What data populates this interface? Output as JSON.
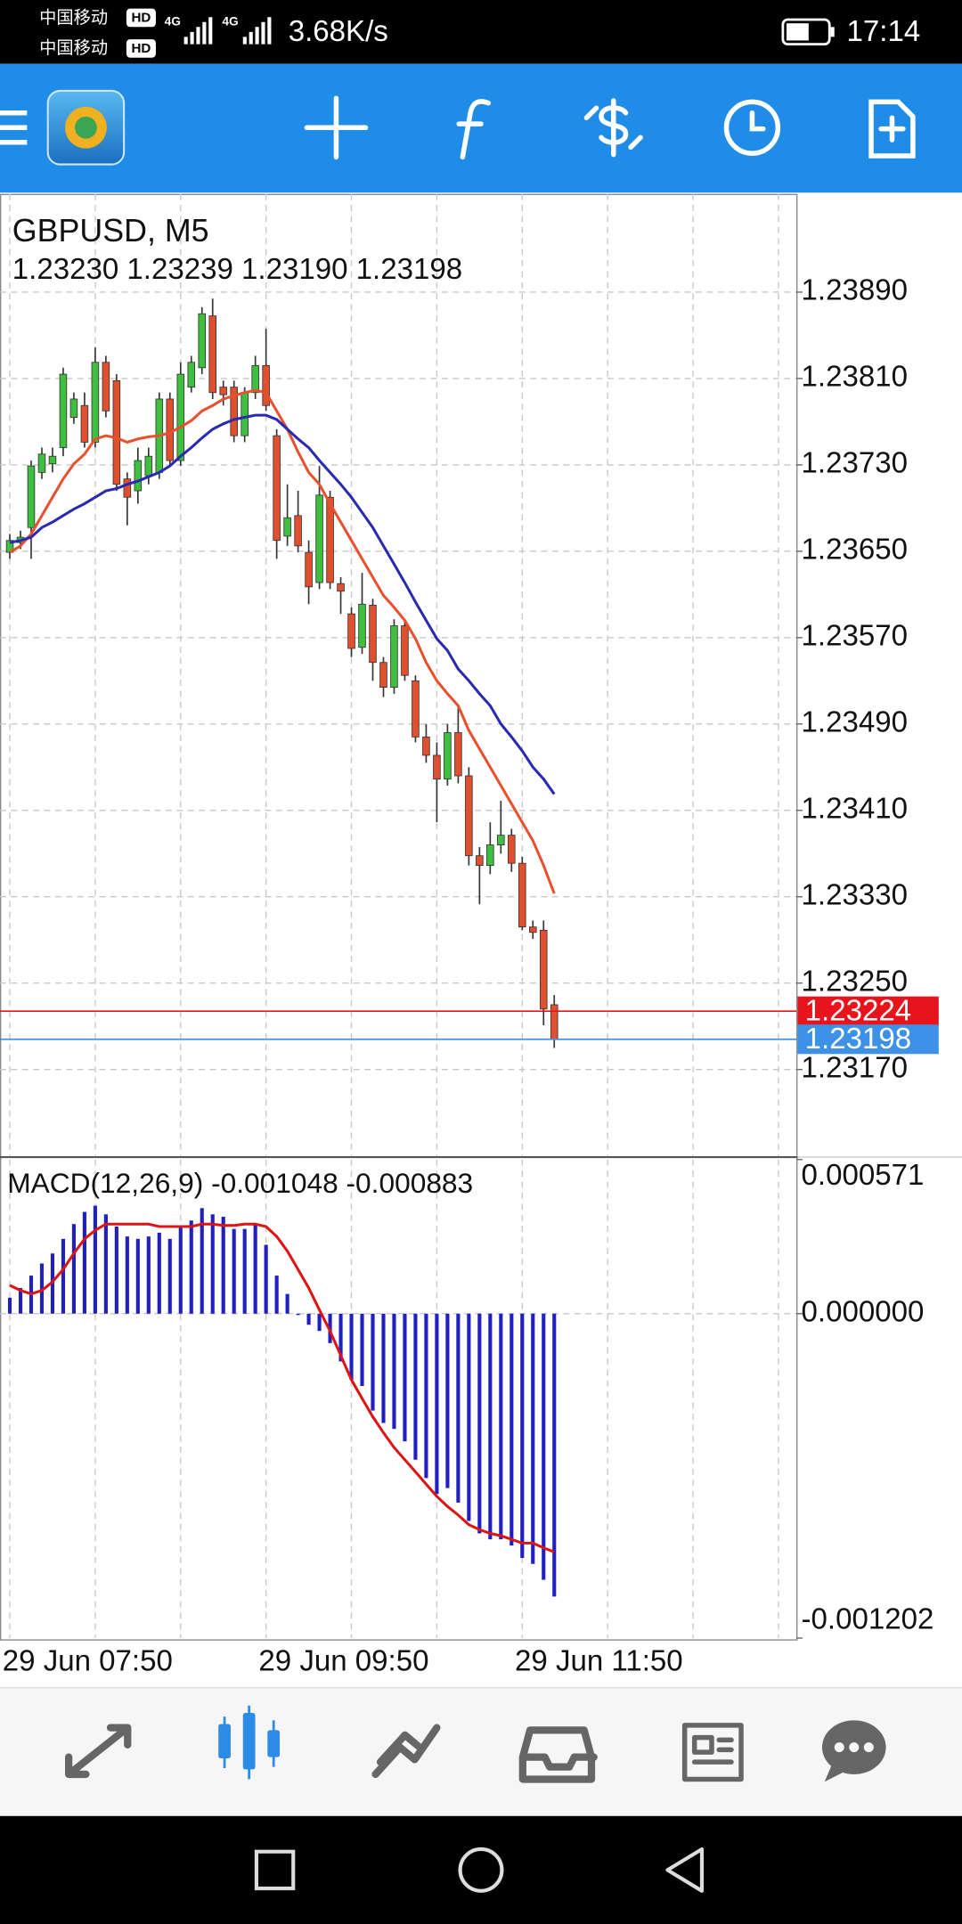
{
  "status_bar": {
    "carrier1": "中国移动",
    "carrier2": "中国移动",
    "hd": "HD",
    "network": "4G",
    "speed": "3.68K/s",
    "time": "17:14"
  },
  "chart_data": [
    {
      "type": "candlestick",
      "title": "GBPUSD, M5",
      "subtitle": "1.23230 1.23239 1.23190 1.23198",
      "up_color": "#3fbf3f",
      "down_color": "#e0502e",
      "grid": true,
      "open": [
        1.23649,
        1.23658,
        1.23672,
        1.23723,
        1.23731,
        1.23746,
        1.23774,
        1.23785,
        1.23751,
        1.23825,
        1.23808,
        1.23717,
        1.23706,
        1.2372,
        1.23723,
        1.23791,
        1.23734,
        1.23802,
        1.2382,
        1.23868,
        1.23802,
        1.23802,
        1.23757,
        1.23797,
        1.23822,
        1.23757,
        1.23664,
        1.23683,
        1.23649,
        1.23621,
        1.237,
        1.2362,
        1.23592,
        1.23561,
        1.236,
        1.23547,
        1.23524,
        1.23581,
        1.2353,
        1.23478,
        1.23461,
        1.23439,
        1.23482,
        1.23442,
        1.23368,
        1.23359,
        1.23378,
        1.23387,
        1.23361,
        1.23302,
        1.23299,
        1.2323
      ],
      "high": [
        1.23666,
        1.23669,
        1.23734,
        1.23746,
        1.23746,
        1.2382,
        1.23797,
        1.23797,
        1.23839,
        1.23831,
        1.23814,
        1.23723,
        1.23746,
        1.23746,
        1.23797,
        1.23797,
        1.23825,
        1.23831,
        1.23876,
        1.23884,
        1.23808,
        1.23808,
        1.23802,
        1.23831,
        1.23856,
        1.23763,
        1.23712,
        1.23706,
        1.2366,
        1.23729,
        1.23706,
        1.23626,
        1.23598,
        1.2363,
        1.23606,
        1.23552,
        1.23587,
        1.23587,
        1.23535,
        1.2349,
        1.23473,
        1.2349,
        1.23507,
        1.2345,
        1.23376,
        1.23399,
        1.23419,
        1.23393,
        1.23367,
        1.23308,
        1.23308,
        1.23239
      ],
      "low": [
        1.23643,
        1.23652,
        1.23643,
        1.23717,
        1.23723,
        1.23738,
        1.23768,
        1.23746,
        1.23746,
        1.23774,
        1.23706,
        1.23674,
        1.23694,
        1.23712,
        1.23717,
        1.23729,
        1.23729,
        1.23797,
        1.23814,
        1.23791,
        1.23785,
        1.23751,
        1.23751,
        1.23791,
        1.2378,
        1.23643,
        1.23655,
        1.23649,
        1.23601,
        1.23615,
        1.23615,
        1.23592,
        1.23552,
        1.23555,
        1.2353,
        1.23515,
        1.23518,
        1.2353,
        1.23473,
        1.23454,
        1.23399,
        1.23433,
        1.23435,
        1.23359,
        1.23323,
        1.23351,
        1.2337,
        1.23353,
        1.23299,
        1.23291,
        1.23211,
        1.2319
      ],
      "close": [
        1.2366,
        1.23663,
        1.23729,
        1.2374,
        1.23738,
        1.23814,
        1.23791,
        1.23751,
        1.23825,
        1.2378,
        1.23712,
        1.237,
        1.23734,
        1.23738,
        1.23791,
        1.23734,
        1.23814,
        1.23825,
        1.2387,
        1.23797,
        1.23795,
        1.23757,
        1.23797,
        1.23822,
        1.23785,
        1.2366,
        1.23681,
        1.23655,
        1.23617,
        1.23702,
        1.23621,
        1.23613,
        1.2356,
        1.23601,
        1.23547,
        1.23524,
        1.23581,
        1.23535,
        1.23478,
        1.23461,
        1.23439,
        1.23482,
        1.23442,
        1.23368,
        1.23359,
        1.23378,
        1.23387,
        1.23361,
        1.23302,
        1.23297,
        1.23226,
        1.23198
      ],
      "series": [
        {
          "color": "#e8502e",
          "values": [
            1.23649,
            1.23655,
            1.23666,
            1.23683,
            1.237,
            1.23717,
            1.23731,
            1.2374,
            1.23754,
            1.23757,
            1.23755,
            1.23751,
            1.23754,
            1.23756,
            1.23757,
            1.2376,
            1.23765,
            1.23771,
            1.2378,
            1.23785,
            1.23791,
            1.23794,
            1.23797,
            1.23799,
            1.23797,
            1.2378,
            1.23763,
            1.23742,
            1.23723,
            1.23712,
            1.23694,
            1.23677,
            1.2366,
            1.23643,
            1.23626,
            1.23609,
            1.23598,
            1.23586,
            1.23569,
            1.23547,
            1.2353,
            1.23518,
            1.23507,
            1.23484,
            1.23467,
            1.2345,
            1.23433,
            1.23416,
            1.23399,
            1.23382,
            1.23359,
            1.23333
          ]
        },
        {
          "color": "#2a2ab0",
          "values": [
            1.23658,
            1.2366,
            1.23663,
            1.23672,
            1.23677,
            1.23683,
            1.23689,
            1.23694,
            1.237,
            1.23706,
            1.23708,
            1.23712,
            1.23715,
            1.23719,
            1.23723,
            1.23729,
            1.23738,
            1.23746,
            1.23755,
            1.23763,
            1.23768,
            1.23772,
            1.23774,
            1.23776,
            1.23776,
            1.23772,
            1.23763,
            1.23754,
            1.23746,
            1.23734,
            1.23723,
            1.23712,
            1.237,
            1.23686,
            1.23672,
            1.23655,
            1.23638,
            1.23621,
            1.23603,
            1.23586,
            1.23569,
            1.23558,
            1.23541,
            1.2353,
            1.23518,
            1.23507,
            1.2349,
            1.23478,
            1.23465,
            1.2345,
            1.23439,
            1.23425
          ]
        }
      ],
      "price_lines": [
        {
          "value": 1.23224,
          "color": "#e8141c"
        },
        {
          "value": 1.23198,
          "color": "#3d91e6"
        }
      ],
      "ylim": [
        1.2309,
        1.23981
      ],
      "yticks": [
        {
          "value": 1.2389,
          "label": "1.23890"
        },
        {
          "value": 1.2381,
          "label": "1.23810"
        },
        {
          "value": 1.2373,
          "label": "1.23730"
        },
        {
          "value": 1.2365,
          "label": "1.23650"
        },
        {
          "value": 1.2357,
          "label": "1.23570"
        },
        {
          "value": 1.2349,
          "label": "1.23490"
        },
        {
          "value": 1.2341,
          "label": "1.23410"
        },
        {
          "value": 1.2333,
          "label": "1.23330"
        },
        {
          "value": 1.2325,
          "label": "1.23250"
        },
        {
          "value": 1.2317,
          "label": "1.23170"
        }
      ],
      "xticks": [
        {
          "value": 0,
          "label": "29 Jun 07:50"
        },
        {
          "value": 24,
          "label": "29 Jun 09:50"
        },
        {
          "value": 48,
          "label": "29 Jun 11:50"
        }
      ]
    },
    {
      "type": "macd",
      "title": "MACD(12,26,9) -0.001048 -0.000883",
      "color": "#2020c0",
      "values": [
        5.9e-05,
        9.5e-05,
        0.000141,
        0.000186,
        0.000223,
        0.000277,
        0.000332,
        0.000377,
        0.0004,
        0.000368,
        0.000323,
        0.000286,
        0.000277,
        0.000286,
        0.0003,
        0.000277,
        0.000323,
        0.000345,
        0.000391,
        0.000368,
        0.000359,
        0.000314,
        0.000314,
        0.000332,
        0.000255,
        0.000141,
        7.3e-05,
        -5e-06,
        -4.1e-05,
        -6.4e-05,
        -0.000109,
        -0.000177,
        -0.000245,
        -0.000268,
        -0.000359,
        -0.000405,
        -0.000427,
        -0.000473,
        -0.000541,
        -0.000609,
        -0.000668,
        -0.000646,
        -0.0007,
        -0.000768,
        -0.000814,
        -0.000836,
        -0.000836,
        -0.000859,
        -0.000905,
        -0.000927,
        -0.000986,
        -0.001048
      ],
      "series": [
        {
          "color": "#dd1414",
          "values": [
            0.000105,
            8.6e-05,
            7.3e-05,
            8.6e-05,
            0.000118,
            0.000164,
            0.000223,
            0.000277,
            0.000309,
            0.000332,
            0.000332,
            0.000332,
            0.000332,
            0.000332,
            0.000323,
            0.000323,
            0.000323,
            0.000323,
            0.000332,
            0.000332,
            0.000327,
            0.000327,
            0.000332,
            0.000332,
            0.000323,
            0.000286,
            0.000232,
            0.000164,
            9.5e-05,
            1.4e-05,
            -6.4e-05,
            -0.000155,
            -0.000245,
            -0.000314,
            -0.000382,
            -0.000441,
            -0.000496,
            -0.000541,
            -0.000586,
            -0.000632,
            -0.000677,
            -0.000714,
            -0.000746,
            -0.000782,
            -0.0008,
            -0.000814,
            -0.000823,
            -0.000836,
            -0.00085,
            -0.00085,
            -0.000868,
            -0.000883
          ]
        }
      ],
      "ylim": [
        -0.001202,
        0.000571
      ],
      "yticks": [
        0.000571,
        {
          "value": 0,
          "label": "0.000000"
        },
        -0.001202
      ]
    }
  ]
}
